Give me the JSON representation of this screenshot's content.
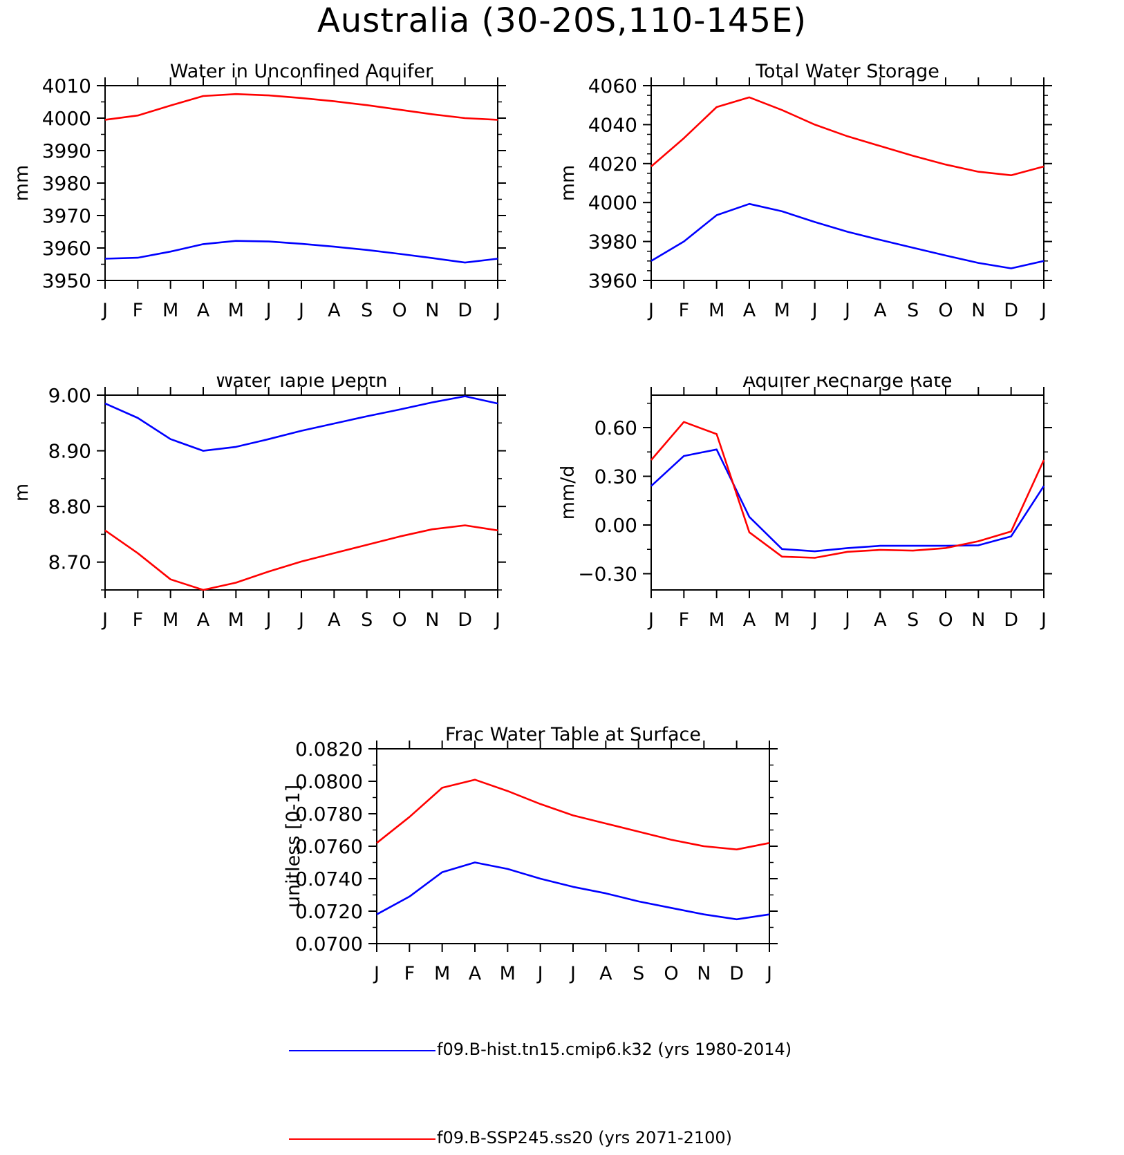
{
  "page_title": "Australia (30-20S,110-145E)",
  "months": [
    "J",
    "F",
    "M",
    "A",
    "M",
    "J",
    "J",
    "A",
    "S",
    "O",
    "N",
    "D",
    "J"
  ],
  "colors": {
    "hist": "#0000ff",
    "ssp": "#ff0000",
    "axis": "#000000"
  },
  "legend": [
    {
      "label": "f09.B-hist.tn15.cmip6.k32 (yrs 1980-2014)",
      "color": "#0000ff"
    },
    {
      "label": "f09.B-SSP245.ss20 (yrs 2071-2100)",
      "color": "#ff0000"
    }
  ],
  "chart_data": [
    {
      "type": "line",
      "title": "Water in Unconfined Aquifer",
      "ylabel": "mm",
      "ylim": [
        3950,
        4010
      ],
      "yticks": [
        "3950",
        "3960",
        "3970",
        "3980",
        "3990",
        "4000",
        "4010"
      ],
      "yminor": 5,
      "x": [
        "J",
        "F",
        "M",
        "A",
        "M",
        "J",
        "J",
        "A",
        "S",
        "O",
        "N",
        "D",
        "J"
      ],
      "series": [
        {
          "values": [
            3956.7,
            3957.0,
            3958.9,
            3961.2,
            3962.2,
            3962.0,
            3961.3,
            3960.4,
            3959.4,
            3958.2,
            3956.9,
            3955.5,
            3956.7
          ]
        },
        {
          "values": [
            3999.5,
            4000.8,
            4003.9,
            4006.8,
            4007.4,
            4007.0,
            4006.2,
            4005.2,
            4004.0,
            4002.6,
            4001.2,
            4000.0,
            3999.5
          ]
        }
      ]
    },
    {
      "type": "line",
      "title": "Total Water Storage",
      "ylabel": "mm",
      "ylim": [
        3960,
        4060
      ],
      "yticks": [
        "3960",
        "3980",
        "4000",
        "4020",
        "4040",
        "4060"
      ],
      "yminor": 5,
      "x": [
        "J",
        "F",
        "M",
        "A",
        "M",
        "J",
        "J",
        "A",
        "S",
        "O",
        "N",
        "D",
        "J"
      ],
      "series": [
        {
          "values": [
            3970,
            3980,
            3993.5,
            3999.3,
            3995.5,
            3990,
            3985,
            3980.8,
            3976.8,
            3972.8,
            3969,
            3966.2,
            3970
          ]
        },
        {
          "values": [
            4018.5,
            4033,
            4049,
            4054,
            4047.5,
            4040,
            4034,
            4029,
            4024,
            4019.5,
            4015.8,
            4014,
            4018.5
          ]
        }
      ]
    },
    {
      "type": "line",
      "title": "Water Table Depth",
      "ylabel": "m",
      "ylim": [
        8.65,
        9.0
      ],
      "yticks": [
        "8.70",
        "8.80",
        "8.90",
        "9.00"
      ],
      "yticks_values": [
        8.7,
        8.8,
        8.9,
        9.0
      ],
      "yminor": 0.05,
      "x": [
        "J",
        "F",
        "M",
        "A",
        "M",
        "J",
        "J",
        "A",
        "S",
        "O",
        "N",
        "D",
        "J"
      ],
      "series": [
        {
          "values": [
            8.985,
            8.959,
            8.921,
            8.9,
            8.907,
            8.921,
            8.936,
            8.949,
            8.962,
            8.974,
            8.987,
            8.998,
            8.985
          ]
        },
        {
          "values": [
            8.757,
            8.716,
            8.669,
            8.65,
            8.663,
            8.683,
            8.701,
            8.716,
            8.731,
            8.746,
            8.759,
            8.766,
            8.757
          ]
        }
      ]
    },
    {
      "type": "line",
      "title": "Aquifer Recharge Rate",
      "ylabel": "mm/d",
      "ylim": [
        -0.4,
        0.8
      ],
      "yticks": [
        "-0.30",
        "0.00",
        "0.30",
        "0.60"
      ],
      "yticks_values": [
        -0.3,
        0.0,
        0.3,
        0.6
      ],
      "yminor": 0.15,
      "x": [
        "J",
        "F",
        "M",
        "A",
        "M",
        "J",
        "J",
        "A",
        "S",
        "O",
        "N",
        "D",
        "J"
      ],
      "series": [
        {
          "values": [
            0.24,
            0.425,
            0.465,
            0.05,
            -0.148,
            -0.162,
            -0.142,
            -0.128,
            -0.128,
            -0.128,
            -0.125,
            -0.07,
            0.24
          ]
        },
        {
          "values": [
            0.4,
            0.635,
            0.56,
            -0.045,
            -0.195,
            -0.202,
            -0.165,
            -0.153,
            -0.158,
            -0.142,
            -0.1,
            -0.04,
            0.4
          ]
        }
      ]
    },
    {
      "type": "line",
      "title": "Frac Water Table at Surface",
      "ylabel": "unitless [0-1]",
      "ylim": [
        0.07,
        0.082
      ],
      "yticks": [
        "0.0700",
        "0.0720",
        "0.0740",
        "0.0760",
        "0.0780",
        "0.0800",
        "0.0820"
      ],
      "yminor": 0.001,
      "x": [
        "J",
        "F",
        "M",
        "A",
        "M",
        "J",
        "J",
        "A",
        "S",
        "O",
        "N",
        "D",
        "J"
      ],
      "series": [
        {
          "values": [
            0.0718,
            0.0729,
            0.0744,
            0.075,
            0.0746,
            0.074,
            0.0735,
            0.0731,
            0.0726,
            0.0722,
            0.0718,
            0.0715,
            0.0718
          ]
        },
        {
          "values": [
            0.0762,
            0.0778,
            0.0796,
            0.0801,
            0.0794,
            0.0786,
            0.0779,
            0.0774,
            0.0769,
            0.0764,
            0.076,
            0.0758,
            0.0762
          ]
        }
      ]
    }
  ]
}
